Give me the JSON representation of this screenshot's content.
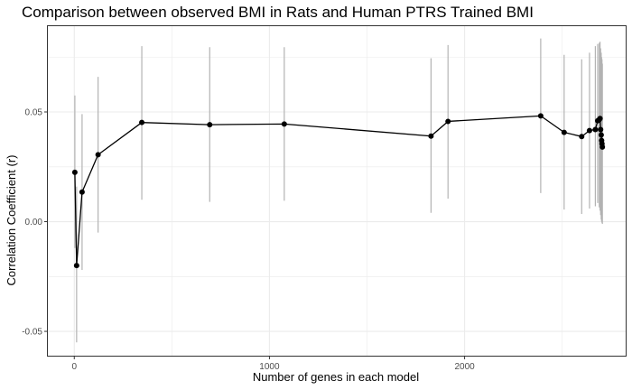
{
  "chart_data": {
    "type": "line",
    "title": "Comparison between observed BMI in Rats and Human PTRS Trained BMI",
    "xlabel": "Number of genes in each model",
    "ylabel": "Correlation Coefficient (r)",
    "xlim": [
      -140,
      2830
    ],
    "ylim": [
      -0.0615,
      0.0895
    ],
    "xticks": [
      0,
      1000,
      2000
    ],
    "xtick_labels": [
      "0",
      "1000",
      "2000"
    ],
    "yticks": [
      -0.05,
      0.0,
      0.05
    ],
    "ytick_labels": [
      "-0.05",
      "0.00",
      "0.05"
    ],
    "grid": true,
    "legend": "none",
    "colors": {
      "line": "#000000",
      "point": "#000000",
      "errorbar": "#b3b3b3",
      "grid": "#ebebeb",
      "panel_border": "#333333"
    },
    "series": [
      {
        "x": [
          3,
          12,
          40,
          122,
          346,
          694,
          1076,
          1828,
          1915,
          2390,
          2510,
          2600,
          2640,
          2670,
          2682,
          2690,
          2694,
          2697,
          2700,
          2702,
          2704,
          2706
        ],
        "y": [
          0.0225,
          -0.02,
          0.0135,
          0.0305,
          0.0452,
          0.0442,
          0.0445,
          0.039,
          0.0457,
          0.0482,
          0.0407,
          0.0388,
          0.0415,
          0.042,
          0.046,
          0.0465,
          0.047,
          0.042,
          0.0395,
          0.037,
          0.0355,
          0.034
        ],
        "ymin": [
          -0.012,
          -0.055,
          -0.022,
          -0.005,
          0.01,
          0.009,
          0.0095,
          0.004,
          0.0105,
          0.013,
          0.0055,
          0.0035,
          0.006,
          0.007,
          0.0085,
          0.0065,
          0.005,
          0.003,
          0.001,
          0.0,
          -0.0005,
          -0.001
        ],
        "ymax": [
          0.0575,
          0.016,
          0.049,
          0.066,
          0.08,
          0.0795,
          0.0795,
          0.0745,
          0.0805,
          0.0835,
          0.076,
          0.074,
          0.077,
          0.08,
          0.081,
          0.0815,
          0.082,
          0.079,
          0.077,
          0.075,
          0.074,
          0.072
        ]
      }
    ]
  }
}
